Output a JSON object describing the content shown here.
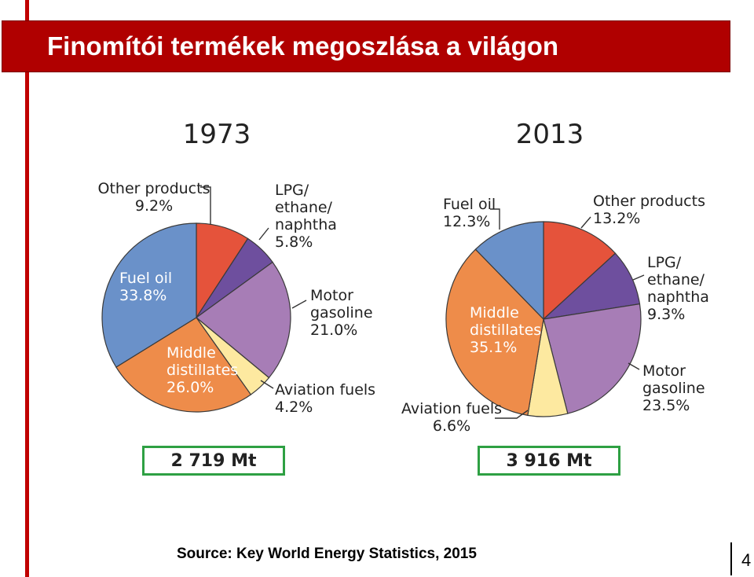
{
  "slide": {
    "title": "Finomítói termékek megoszlása a világon",
    "source": "Source: Key World Energy Statistics, 2015",
    "page_number": "4"
  },
  "colors": {
    "title_bg": "#b00000",
    "accent_bar": "#c00000",
    "total_box_border": "#2ea043"
  },
  "chart_data": [
    {
      "type": "pie",
      "title": "1973",
      "total_label": "2 719 Mt",
      "slices": [
        {
          "name": "Other products",
          "value": 9.2,
          "label": "9.2%",
          "color": "#e5533b"
        },
        {
          "name": "LPG/ ethane/ naphtha",
          "value": 5.8,
          "label": "5.8%",
          "color": "#6e4f9e"
        },
        {
          "name": "Motor gasoline",
          "value": 21.0,
          "label": "21.0%",
          "color": "#a77db6"
        },
        {
          "name": "Aviation fuels",
          "value": 4.2,
          "label": "4.2%",
          "color": "#fde9a0"
        },
        {
          "name": "Middle distillates",
          "value": 26.0,
          "label": "26.0%",
          "color": "#ee8c4a"
        },
        {
          "name": "Fuel oil",
          "value": 33.8,
          "label": "33.8%",
          "color": "#6a91c9"
        }
      ]
    },
    {
      "type": "pie",
      "title": "2013",
      "total_label": "3 916 Mt",
      "slices": [
        {
          "name": "Other products",
          "value": 13.2,
          "label": "13.2%",
          "color": "#e5533b"
        },
        {
          "name": "LPG/ ethane/ naphtha",
          "value": 9.3,
          "label": "9.3%",
          "color": "#6e4f9e"
        },
        {
          "name": "Motor gasoline",
          "value": 23.5,
          "label": "23.5%",
          "color": "#a77db6"
        },
        {
          "name": "Aviation fuels",
          "value": 6.6,
          "label": "6.6%",
          "color": "#fde9a0"
        },
        {
          "name": "Middle distillates",
          "value": 35.1,
          "label": "35.1%",
          "color": "#ee8c4a"
        },
        {
          "name": "Fuel oil",
          "value": 12.3,
          "label": "12.3%",
          "color": "#6a91c9"
        }
      ]
    }
  ]
}
